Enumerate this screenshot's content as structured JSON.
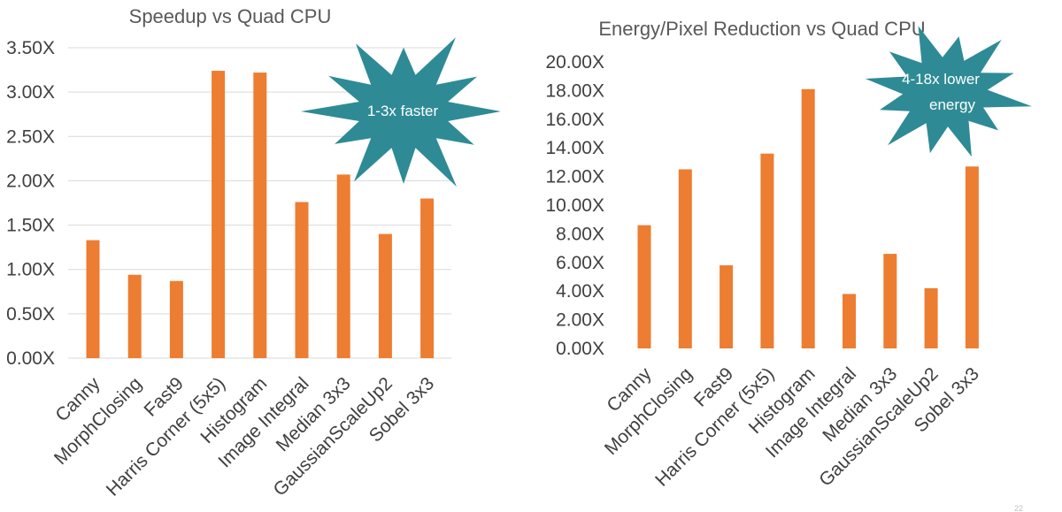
{
  "chart_data": [
    {
      "type": "bar",
      "title": "Speedup vs Quad CPU",
      "categories": [
        "Canny",
        "MorphClosing",
        "Fast9",
        "Harris Corner (5x5)",
        "Histogram",
        "Image Integral",
        "Median 3x3",
        "GaussianScaleUp2",
        "Sobel 3x3"
      ],
      "values": [
        1.33,
        0.94,
        0.87,
        3.24,
        3.22,
        1.76,
        2.07,
        1.4,
        1.8
      ],
      "ylim": [
        0,
        3.5
      ],
      "yticks": [
        "0.00X",
        "0.50X",
        "1.00X",
        "1.50X",
        "2.00X",
        "2.50X",
        "3.00X",
        "3.50X"
      ],
      "ytick_values": [
        0,
        0.5,
        1.0,
        1.5,
        2.0,
        2.5,
        3.0,
        3.5
      ],
      "xlabel": "",
      "ylabel": "",
      "grid": true,
      "bar_color": "#ED7D31",
      "annotation": "1-3x faster"
    },
    {
      "type": "bar",
      "title": "Energy/Pixel Reduction vs Quad CPU",
      "categories": [
        "Canny",
        "MorphClosing",
        "Fast9",
        "Harris Corner (5x5)",
        "Histogram",
        "Image Integral",
        "Median 3x3",
        "GaussianScaleUp2",
        "Sobel 3x3"
      ],
      "values": [
        8.6,
        12.5,
        5.8,
        13.6,
        18.1,
        3.8,
        6.6,
        4.2,
        12.7
      ],
      "ylim": [
        0,
        20
      ],
      "yticks": [
        "0.00X",
        "2.00X",
        "4.00X",
        "6.00X",
        "8.00X",
        "10.00X",
        "12.00X",
        "14.00X",
        "16.00X",
        "18.00X",
        "20.00X"
      ],
      "ytick_values": [
        0,
        2,
        4,
        6,
        8,
        10,
        12,
        14,
        16,
        18,
        20
      ],
      "xlabel": "",
      "ylabel": "",
      "grid": false,
      "bar_color": "#ED7D31",
      "annotation_lines": [
        "4-18x lower",
        "energy"
      ]
    }
  ],
  "burst_color": "#2E8B96",
  "page_number": "22"
}
